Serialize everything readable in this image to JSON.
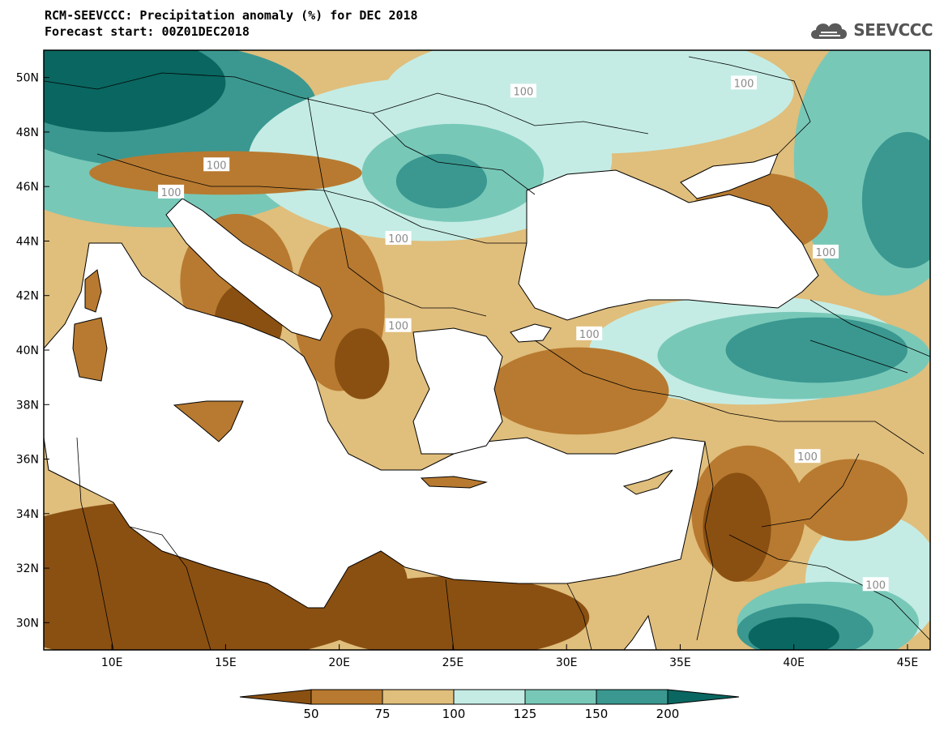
{
  "title": "RCM-SEEVCCC: Precipitation anomaly (%) for DEC 2018",
  "subtitle": "Forecast start: 00Z01DEC2018",
  "logo": {
    "text": "SEEVCCC",
    "icon": "cloud-icon"
  },
  "map": {
    "lon_range": [
      7,
      46
    ],
    "lat_range": [
      29,
      51
    ],
    "lat_ticks": [
      {
        "value": 30,
        "label": "30N"
      },
      {
        "value": 32,
        "label": "32N"
      },
      {
        "value": 34,
        "label": "34N"
      },
      {
        "value": 36,
        "label": "36N"
      },
      {
        "value": 38,
        "label": "38N"
      },
      {
        "value": 40,
        "label": "40N"
      },
      {
        "value": 42,
        "label": "42N"
      },
      {
        "value": 44,
        "label": "44N"
      },
      {
        "value": 46,
        "label": "46N"
      },
      {
        "value": 48,
        "label": "48N"
      },
      {
        "value": 50,
        "label": "50N"
      }
    ],
    "lon_ticks": [
      {
        "value": 10,
        "label": "10E"
      },
      {
        "value": 15,
        "label": "15E"
      },
      {
        "value": 20,
        "label": "20E"
      },
      {
        "value": 25,
        "label": "25E"
      },
      {
        "value": 30,
        "label": "30E"
      },
      {
        "value": 35,
        "label": "35E"
      },
      {
        "value": 40,
        "label": "40E"
      },
      {
        "value": 45,
        "label": "45E"
      }
    ],
    "contour_label_text": "100",
    "contour_labels": [
      {
        "lon": 28.1,
        "lat": 49.5
      },
      {
        "lon": 37.8,
        "lat": 49.8
      },
      {
        "lon": 14.6,
        "lat": 46.8
      },
      {
        "lon": 12.6,
        "lat": 45.8
      },
      {
        "lon": 22.6,
        "lat": 44.1
      },
      {
        "lon": 22.6,
        "lat": 40.9
      },
      {
        "lon": 31.0,
        "lat": 40.6
      },
      {
        "lon": 41.4,
        "lat": 43.6
      },
      {
        "lon": 40.6,
        "lat": 36.1
      },
      {
        "lon": 43.6,
        "lat": 31.4
      }
    ],
    "colors": {
      "land_default": "#e0be7c",
      "sea": "#ffffff",
      "border": "#000000",
      "contour_100": "#a8a8a8"
    },
    "regions": [
      {
        "class": "125-150",
        "color": "#78c8b8",
        "lon": 12,
        "lat": 47.5,
        "rlon": 8,
        "rlat": 3
      },
      {
        "class": "150-200",
        "color": "#3a9890",
        "lon": 12,
        "lat": 49,
        "rlon": 7,
        "rlat": 2.3
      },
      {
        "class": ">200",
        "color": "#0a6660",
        "lon": 10,
        "lat": 49.8,
        "rlon": 5,
        "rlat": 1.8
      },
      {
        "class": "100-125",
        "color": "#c4ece4",
        "lon": 24,
        "lat": 47,
        "rlon": 8,
        "rlat": 3
      },
      {
        "class": "100-125",
        "color": "#c4ece4",
        "lon": 31,
        "lat": 49.5,
        "rlon": 9,
        "rlat": 2.3
      },
      {
        "class": "125-150",
        "color": "#78c8b8",
        "lon": 25,
        "lat": 46.5,
        "rlon": 4,
        "rlat": 1.8
      },
      {
        "class": "150-200",
        "color": "#3a9890",
        "lon": 24.5,
        "lat": 46.2,
        "rlon": 2,
        "rlat": 1
      },
      {
        "class": "125-150",
        "color": "#78c8b8",
        "lon": 44,
        "lat": 47,
        "rlon": 4,
        "rlat": 5
      },
      {
        "class": "150-200",
        "color": "#3a9890",
        "lon": 45,
        "lat": 45.5,
        "rlon": 2,
        "rlat": 2.5
      },
      {
        "class": "100-125",
        "color": "#c4ece4",
        "lon": 38,
        "lat": 40,
        "rlon": 7,
        "rlat": 2
      },
      {
        "class": "125-150",
        "color": "#78c8b8",
        "lon": 40,
        "lat": 39.8,
        "rlon": 6,
        "rlat": 1.6
      },
      {
        "class": "150-200",
        "color": "#3a9890",
        "lon": 41,
        "lat": 40,
        "rlon": 4,
        "rlat": 1.2
      },
      {
        "class": "100-125",
        "color": "#c4ece4",
        "lon": 43.5,
        "lat": 31.5,
        "rlon": 3,
        "rlat": 2.5
      },
      {
        "class": "125-150",
        "color": "#78c8b8",
        "lon": 41.5,
        "lat": 30,
        "rlon": 4,
        "rlat": 1.5
      },
      {
        "class": "150-200",
        "color": "#3a9890",
        "lon": 40.5,
        "lat": 29.7,
        "rlon": 3,
        "rlat": 1
      },
      {
        "class": ">200",
        "color": "#0a6660",
        "lon": 40,
        "lat": 29.5,
        "rlon": 2,
        "rlat": 0.7
      },
      {
        "class": "50-75",
        "color": "#b87a30",
        "lon": 20,
        "lat": 41.5,
        "rlon": 2,
        "rlat": 3
      },
      {
        "class": "50-75",
        "color": "#b87a30",
        "lon": 15.5,
        "lat": 42.5,
        "rlon": 2.5,
        "rlat": 2.5
      },
      {
        "class": "50-75",
        "color": "#b87a30",
        "lon": 30.5,
        "lat": 38.5,
        "rlon": 4,
        "rlat": 1.6
      },
      {
        "class": "50-75",
        "color": "#b87a30",
        "lon": 38,
        "lat": 34,
        "rlon": 2.5,
        "rlat": 2.5
      },
      {
        "class": "50-75",
        "color": "#b87a30",
        "lon": 42.5,
        "lat": 34.5,
        "rlon": 2.5,
        "rlat": 1.5
      },
      {
        "class": "50-75",
        "color": "#b87a30",
        "lon": 38.5,
        "lat": 45,
        "rlon": 3,
        "rlat": 1.5
      },
      {
        "class": "50-75",
        "color": "#b87a30",
        "lon": 15,
        "lat": 46.5,
        "rlon": 6,
        "rlat": 0.8
      },
      {
        "class": "<50",
        "color": "#8a5012",
        "lon": 13,
        "lat": 31.5,
        "rlon": 10,
        "rlat": 3
      },
      {
        "class": "<50",
        "color": "#8a5012",
        "lon": 25,
        "lat": 30.2,
        "rlon": 6,
        "rlat": 1.5
      },
      {
        "class": "<50",
        "color": "#8a5012",
        "lon": 16,
        "lat": 41,
        "rlon": 1.5,
        "rlat": 1.5
      },
      {
        "class": "<50",
        "color": "#8a5012",
        "lon": 21,
        "lat": 39.5,
        "rlon": 1.2,
        "rlat": 1.3
      },
      {
        "class": "<50",
        "color": "#8a5012",
        "lon": 37.5,
        "lat": 33.5,
        "rlon": 1.5,
        "rlat": 2
      }
    ]
  },
  "colorbar": {
    "labels": [
      "50",
      "75",
      "100",
      "125",
      "150",
      "200"
    ],
    "colors": [
      "#8a5012",
      "#b87a30",
      "#e0be7c",
      "#c4ece4",
      "#78c8b8",
      "#3a9890",
      "#0a6660"
    ]
  }
}
